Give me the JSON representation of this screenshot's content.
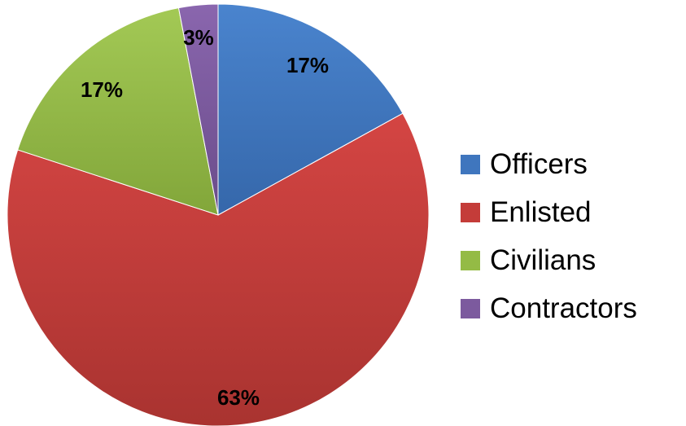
{
  "chart_data": {
    "type": "pie",
    "title": "",
    "categories": [
      "Officers",
      "Enlisted",
      "Civilians",
      "Contractors"
    ],
    "values": [
      17,
      63,
      17,
      3
    ],
    "value_labels": [
      "17%",
      "63%",
      "17%",
      "3%"
    ],
    "colors": [
      "#3F76BE",
      "#C43C39",
      "#94BB45",
      "#7C5A9E"
    ],
    "start_angle": "12 o'clock",
    "direction": "clockwise",
    "legend": {
      "position": "right",
      "items": [
        {
          "label": "Officers",
          "color": "#3F76BE"
        },
        {
          "label": "Enlisted",
          "color": "#C43C39"
        },
        {
          "label": "Civilians",
          "color": "#94BB45"
        },
        {
          "label": "Contractors",
          "color": "#7C5A9E"
        }
      ]
    }
  }
}
